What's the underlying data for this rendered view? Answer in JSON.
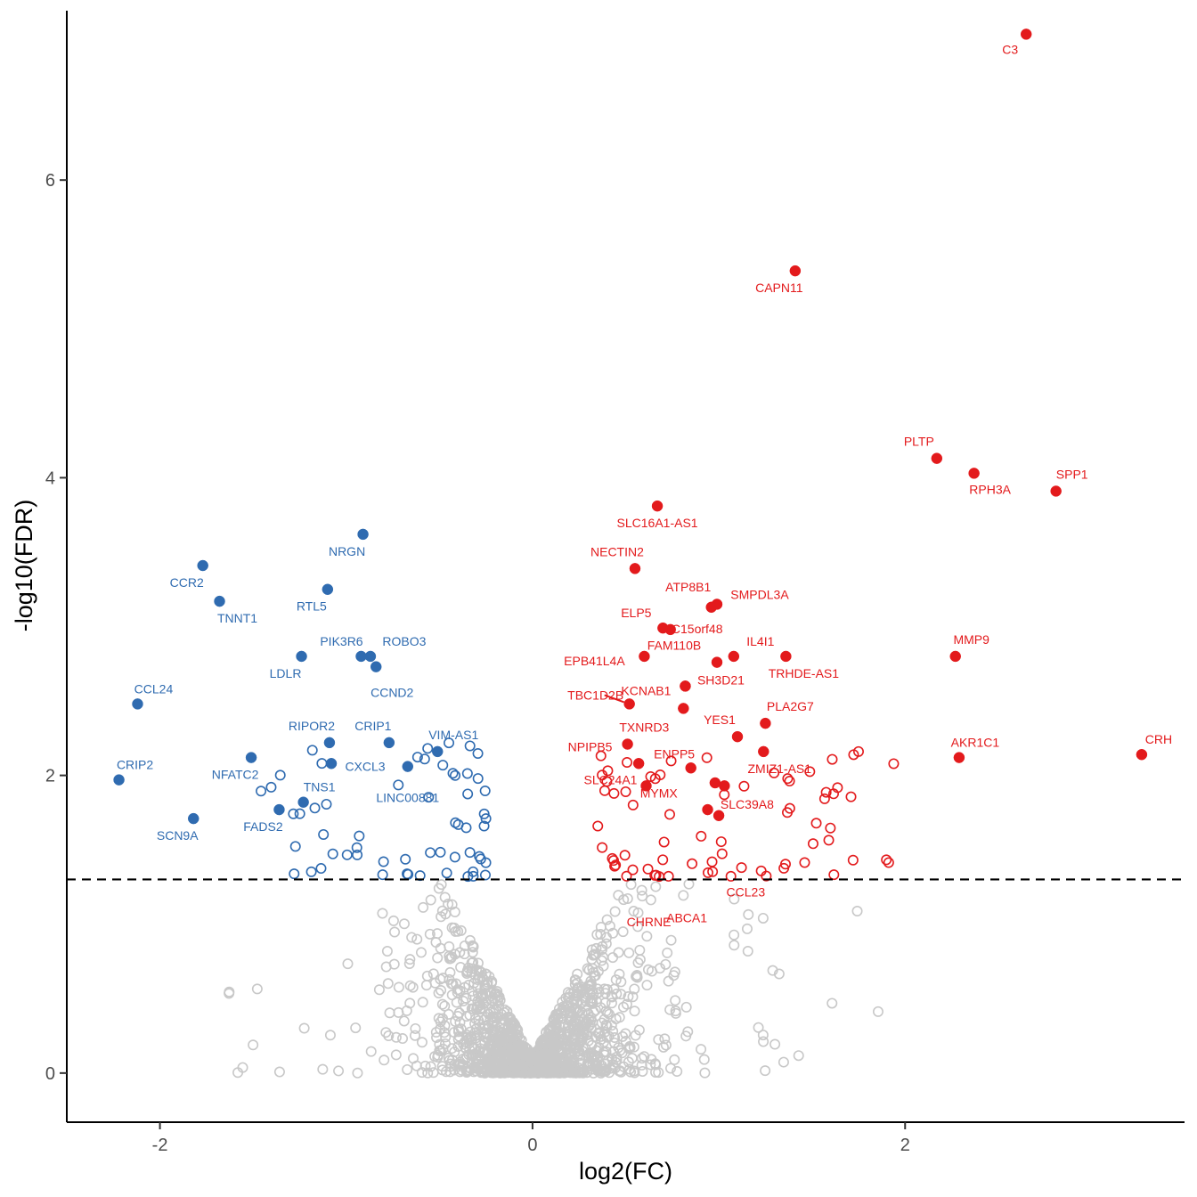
{
  "chart_data": {
    "type": "scatter",
    "title": "",
    "xlabel": "log2(FC)",
    "ylabel": "-log10(FDR)",
    "xlim": [
      -2.5,
      3.5
    ],
    "ylim": [
      -0.33,
      7.15
    ],
    "x_ticks": [
      -2,
      0,
      2
    ],
    "y_ticks": [
      0,
      2,
      4,
      6
    ],
    "threshold_line": {
      "y": 1.301,
      "style": "dashed",
      "color": "#000000"
    },
    "grid": false,
    "legend": "none",
    "colors": {
      "up": "#e31a1c",
      "down": "#2f6bb0",
      "ns": "#c8c8c8"
    },
    "series": [
      {
        "name": "up-labeled",
        "color": "#e31a1c",
        "marker": "filled",
        "points": [
          {
            "label": "C3",
            "x": 2.65,
            "y": 6.98
          },
          {
            "label": "CAPN11",
            "x": 1.41,
            "y": 5.39
          },
          {
            "label": "PLTP",
            "x": 2.17,
            "y": 4.13
          },
          {
            "label": "RPH3A",
            "x": 2.37,
            "y": 4.03
          },
          {
            "label": "SPP1",
            "x": 2.81,
            "y": 3.91
          },
          {
            "label": "SLC16A1-AS1",
            "x": 0.67,
            "y": 3.81
          },
          {
            "label": "NECTIN2",
            "x": 0.55,
            "y": 3.39
          },
          {
            "label": "ATP8B1",
            "x": 0.96,
            "y": 3.13
          },
          {
            "label": "SMPDL3A",
            "x": 0.99,
            "y": 3.15
          },
          {
            "label": "ELP5",
            "x": 0.7,
            "y": 2.99
          },
          {
            "label": "C15orf48",
            "x": 0.74,
            "y": 2.98
          },
          {
            "label": "IL4I1",
            "x": 1.08,
            "y": 2.8
          },
          {
            "label": "EPB41L4A",
            "x": 0.6,
            "y": 2.8
          },
          {
            "label": "FAM110B",
            "x": 0.99,
            "y": 2.76
          },
          {
            "label": "TRHDE-AS1",
            "x": 1.36,
            "y": 2.8
          },
          {
            "label": "MMP9",
            "x": 2.27,
            "y": 2.8
          },
          {
            "label": "KCNAB1",
            "x": 0.82,
            "y": 2.6
          },
          {
            "label": "SH3D21",
            "x": 0.82,
            "y": 2.6
          },
          {
            "label": "TBC1D2B",
            "x": 0.52,
            "y": 2.48
          },
          {
            "label": "TXNRD3",
            "x": 0.81,
            "y": 2.45
          },
          {
            "label": "PLA2G7",
            "x": 1.25,
            "y": 2.35
          },
          {
            "label": "YES1",
            "x": 1.1,
            "y": 2.26
          },
          {
            "label": "NPIPB5",
            "x": 0.51,
            "y": 2.21
          },
          {
            "label": "ENPP5",
            "x": 0.57,
            "y": 2.08
          },
          {
            "label": "ZMIZ1-AS1",
            "x": 1.24,
            "y": 2.16
          },
          {
            "label": "AKR1C1",
            "x": 2.29,
            "y": 2.12
          },
          {
            "label": "CRH",
            "x": 3.27,
            "y": 2.14
          },
          {
            "label": "SLC24A1",
            "x": 0.61,
            "y": 1.93
          },
          {
            "label": "MYMX",
            "x": 0.85,
            "y": 2.05
          },
          {
            "label": "SLC39A8",
            "x": 0.98,
            "y": 1.95
          },
          {
            "label": "CHRNE",
            "x": 0.94,
            "y": 1.77
          },
          {
            "label": "ABCA1",
            "x": 1.0,
            "y": 1.73
          },
          {
            "label": "CCL23",
            "x": 1.03,
            "y": 1.93
          }
        ]
      },
      {
        "name": "down-labeled",
        "color": "#2f6bb0",
        "marker": "filled",
        "points": [
          {
            "label": "NRGN",
            "x": -0.91,
            "y": 3.62
          },
          {
            "label": "CCR2",
            "x": -1.77,
            "y": 3.41
          },
          {
            "label": "TNNT1",
            "x": -1.68,
            "y": 3.17
          },
          {
            "label": "RTL5",
            "x": -1.1,
            "y": 3.25
          },
          {
            "label": "PIK3R6",
            "x": -0.92,
            "y": 2.8
          },
          {
            "label": "ROBO3",
            "x": -0.87,
            "y": 2.8
          },
          {
            "label": "LDLR",
            "x": -1.24,
            "y": 2.8
          },
          {
            "label": "CCND2",
            "x": -0.84,
            "y": 2.73
          },
          {
            "label": "CCL24",
            "x": -2.12,
            "y": 2.48
          },
          {
            "label": "RIPOR2",
            "x": -1.09,
            "y": 2.22
          },
          {
            "label": "CRIP1",
            "x": -0.77,
            "y": 2.22
          },
          {
            "label": "VIM-AS1",
            "x": -0.51,
            "y": 2.16
          },
          {
            "label": "CXCL3",
            "x": -1.08,
            "y": 2.08
          },
          {
            "label": "NFATC2",
            "x": -1.51,
            "y": 2.12
          },
          {
            "label": "LINC00881",
            "x": -0.67,
            "y": 2.06
          },
          {
            "label": "CRIP2",
            "x": -2.22,
            "y": 1.97
          },
          {
            "label": "TNS1",
            "x": -1.23,
            "y": 1.82
          },
          {
            "label": "FADS2",
            "x": -1.36,
            "y": 1.77
          },
          {
            "label": "SCN9A",
            "x": -1.82,
            "y": 1.71
          }
        ]
      },
      {
        "name": "up-significant",
        "color": "#e31a1c",
        "marker": "hollow",
        "count": 70
      },
      {
        "name": "down-significant",
        "color": "#2f6bb0",
        "marker": "hollow",
        "count": 58
      },
      {
        "name": "not-significant",
        "color": "#c8c8c8",
        "marker": "hollow",
        "count": 1500
      }
    ]
  }
}
